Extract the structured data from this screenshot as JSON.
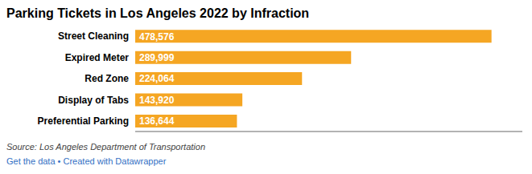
{
  "chart_data": {
    "type": "bar",
    "title": "Parking Tickets in Los Angeles 2022 by Infraction",
    "orientation": "horizontal",
    "categories": [
      "Street Cleaning",
      "Expired Meter",
      "Red Zone",
      "Display of Tabs",
      "Preferential Parking"
    ],
    "values": [
      478576,
      289999,
      224064,
      143920,
      136644
    ],
    "value_labels": [
      "478,576",
      "289,999",
      "224,064",
      "143,920",
      "136,644"
    ],
    "data_labels": true,
    "color": "#F5A623",
    "xlim": [
      0,
      520000
    ],
    "xticks": [],
    "tick_labels": "y",
    "grid": false,
    "annotations": [
      "Source: Los Angeles Department of Transportation",
      "Get the data",
      " • Created with Datawrapper"
    ]
  }
}
